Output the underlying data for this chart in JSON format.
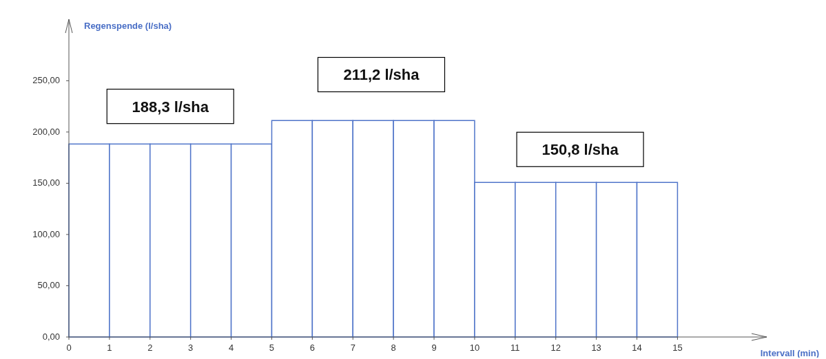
{
  "chart_data": {
    "type": "histogram",
    "xlabel": "Intervall (min)",
    "ylabel": "Regenspende (l/sha)",
    "bins": [
      0,
      1,
      2,
      3,
      4,
      5,
      6,
      7,
      8,
      9,
      10,
      11,
      12,
      13,
      14,
      15
    ],
    "values": [
      188.3,
      188.3,
      188.3,
      188.3,
      188.3,
      211.2,
      211.2,
      211.2,
      211.2,
      211.2,
      150.8,
      150.8,
      150.8,
      150.8,
      150.8
    ],
    "color": "#4f74c9",
    "xlim": [
      0,
      17.2
    ],
    "xticks": [
      0,
      1,
      2,
      3,
      4,
      5,
      6,
      7,
      8,
      9,
      10,
      11,
      12,
      13,
      14,
      15
    ],
    "ylim": [
      0,
      310
    ],
    "yticks": [
      {
        "value": 0,
        "label": "0,00"
      },
      {
        "value": 50,
        "label": "50,00"
      },
      {
        "value": 100,
        "label": "100,00"
      },
      {
        "value": 150,
        "label": "150,00"
      },
      {
        "value": 200,
        "label": "200,00"
      },
      {
        "value": 250,
        "label": "250,00"
      }
    ],
    "grid": false,
    "annotations": [
      "188,3 l/sha",
      "211,2 l/sha",
      "150,8 l/sha"
    ]
  }
}
